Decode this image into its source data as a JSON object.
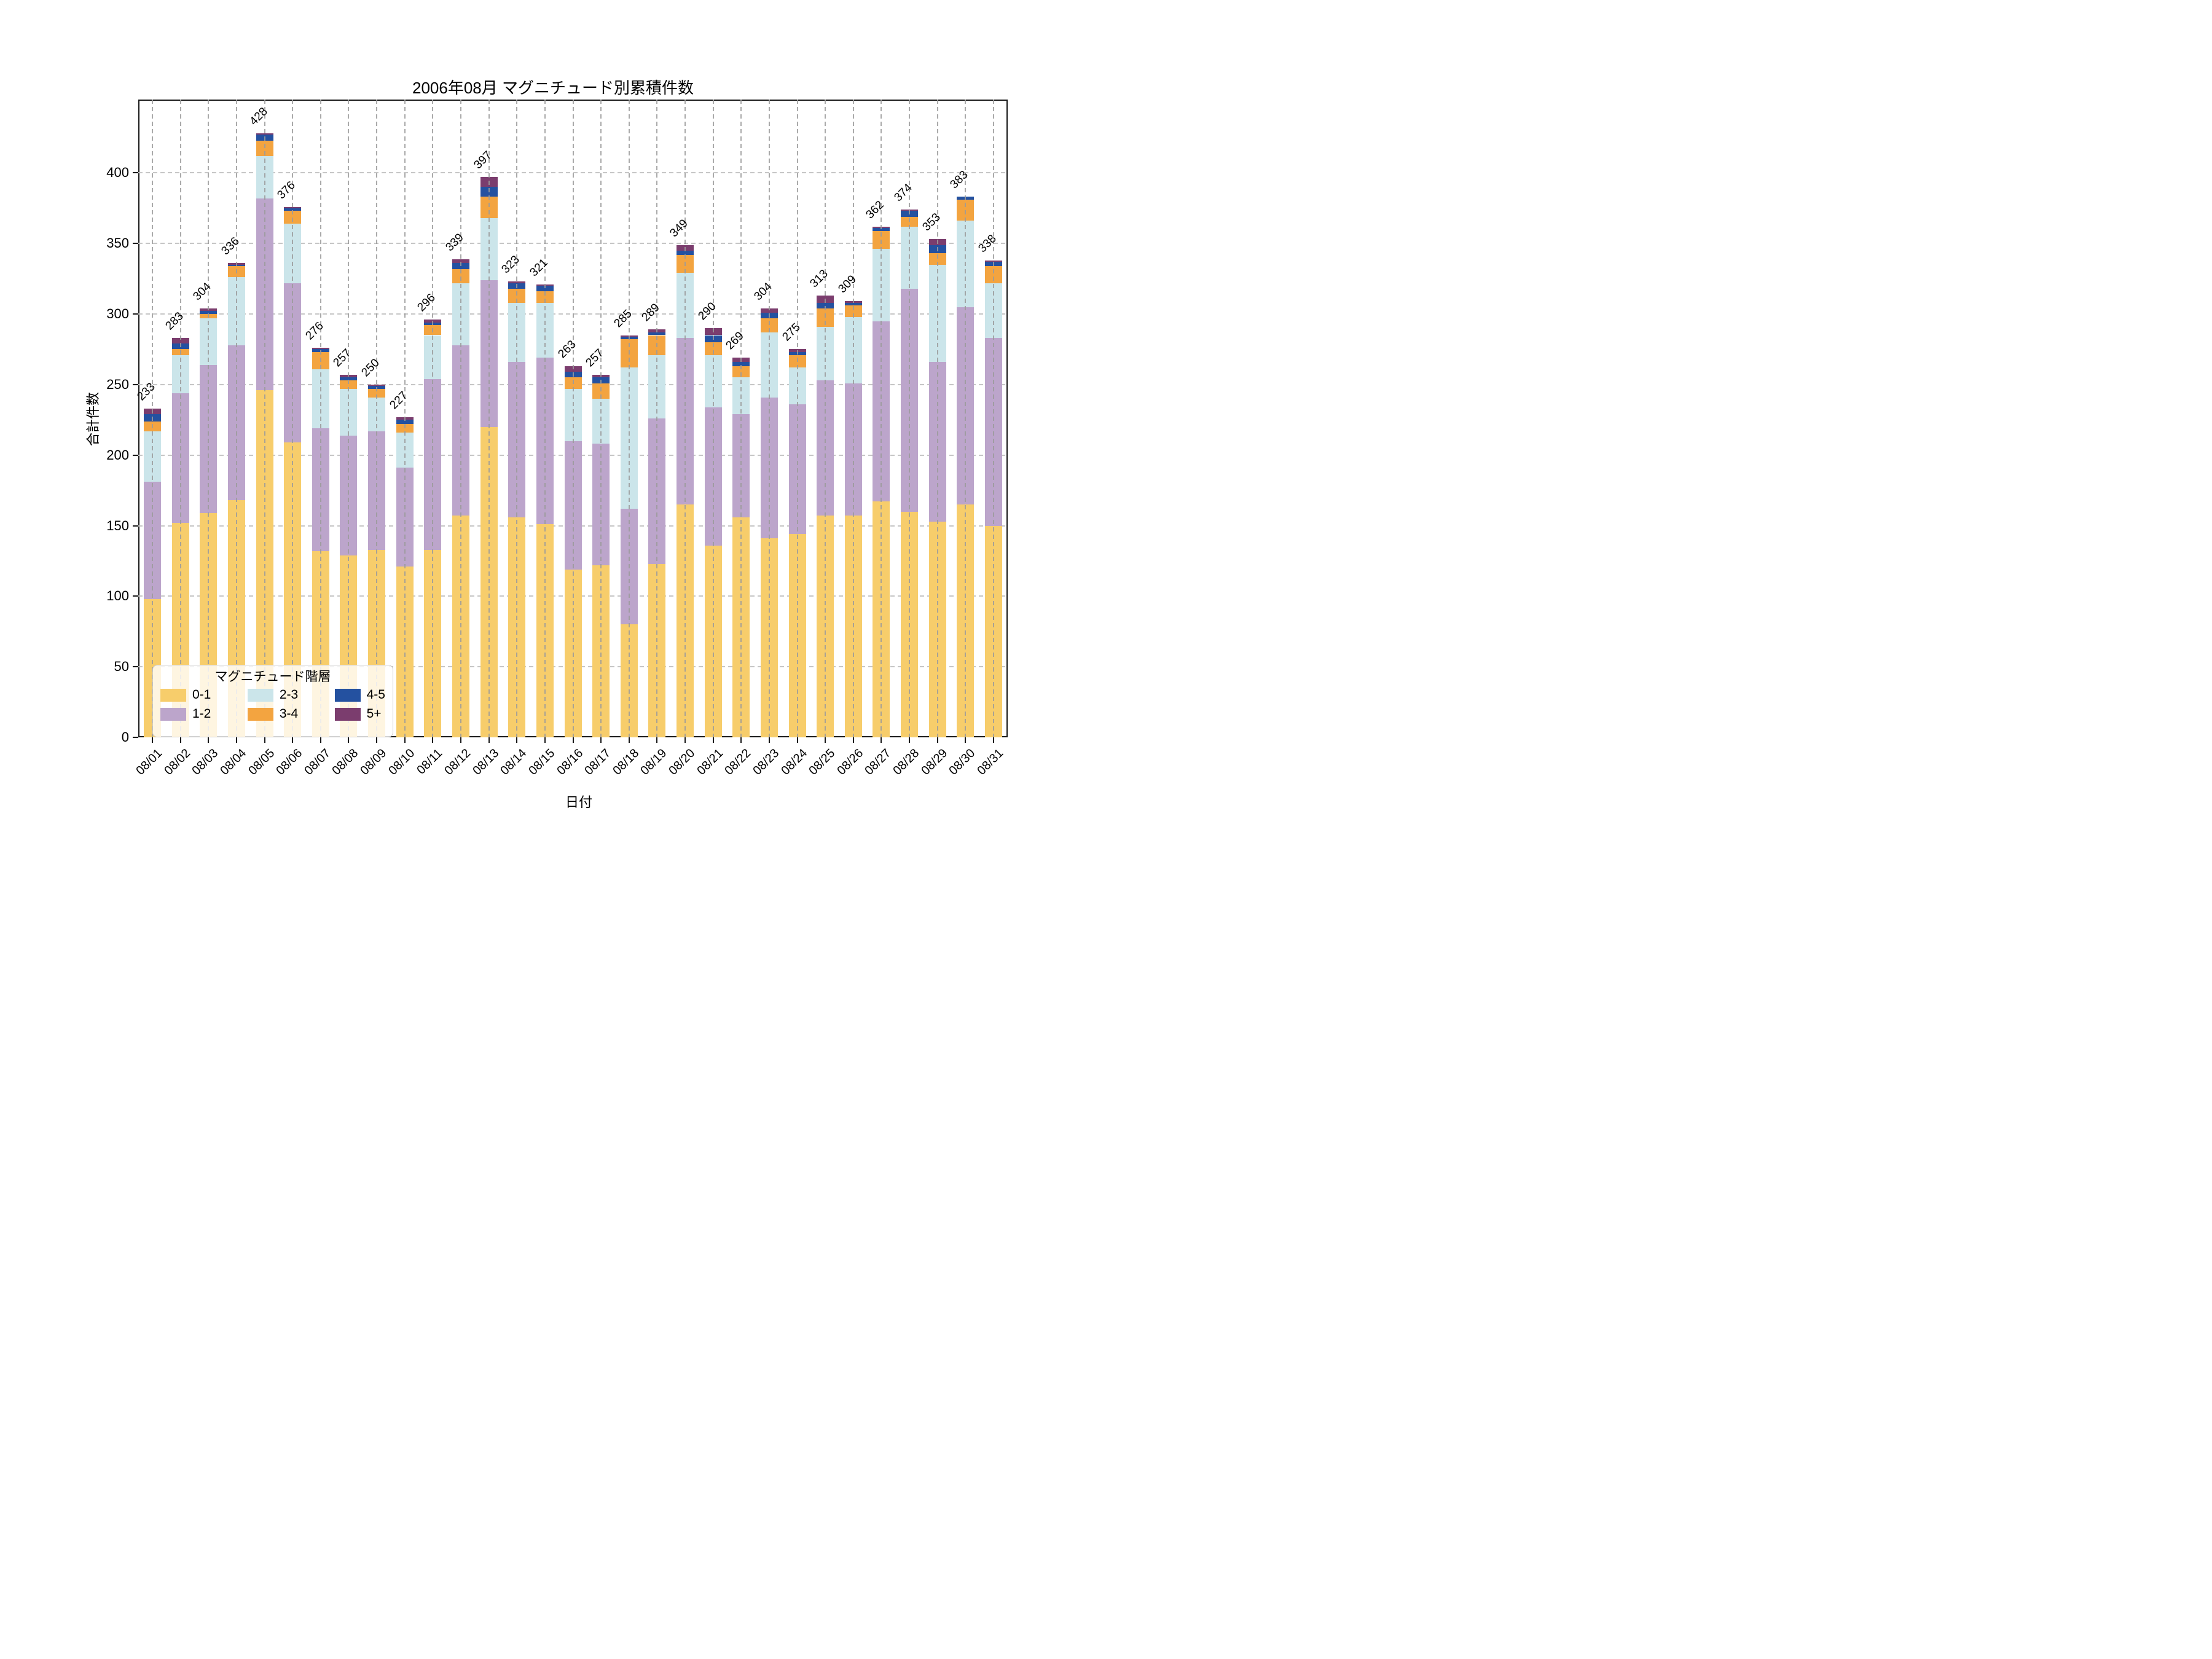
{
  "title": "2006年08月 マグニチュード別累積件数",
  "axes": {
    "x_label": "日付",
    "y_label": "合計件数",
    "y_ticks": [
      0,
      50,
      100,
      150,
      200,
      250,
      300,
      350,
      400
    ]
  },
  "legend": {
    "title": "マグニチュード階層",
    "entries": [
      "0-1",
      "1-2",
      "2-3",
      "3-4",
      "4-5",
      "5+"
    ]
  },
  "colors": {
    "mag_0_1": "#F7CD6B",
    "mag_1_2": "#BCA5CB",
    "mag_2_3": "#CBE5EA",
    "mag_3_4": "#F3A440",
    "mag_4_5": "#2451A0",
    "mag_5_plus": "#7B3D6E",
    "grid": "#c6c6c6",
    "spine": "#1a1a1a"
  },
  "chart_data": {
    "type": "bar",
    "stacked": true,
    "title": "2006年08月 マグニチュード別累積件数",
    "xlabel": "日付",
    "ylabel": "合計件数",
    "ylim": [
      0,
      452
    ],
    "y_ticks": [
      0,
      50,
      100,
      150,
      200,
      250,
      300,
      350,
      400
    ],
    "grid": "dashed; horizontal lines behind bars, vertical line at each bar drawn over bars",
    "legend_title": "マグニチュード階層",
    "legend_position": "lower left",
    "bar_value_labels_rotation_deg": 45,
    "categories": [
      "08/01",
      "08/02",
      "08/03",
      "08/04",
      "08/05",
      "08/06",
      "08/07",
      "08/08",
      "08/09",
      "08/10",
      "08/11",
      "08/12",
      "08/13",
      "08/14",
      "08/15",
      "08/16",
      "08/17",
      "08/18",
      "08/19",
      "08/20",
      "08/21",
      "08/22",
      "08/23",
      "08/24",
      "08/25",
      "08/26",
      "08/27",
      "08/28",
      "08/29",
      "08/30",
      "08/31"
    ],
    "series": [
      {
        "name": "0-1",
        "color": "#F7CD6B",
        "values": [
          98,
          152,
          159,
          168,
          246,
          209,
          132,
          129,
          133,
          121,
          133,
          157,
          220,
          156,
          151,
          119,
          122,
          80,
          123,
          165,
          136,
          156,
          141,
          144,
          157,
          157,
          167,
          160,
          153,
          165,
          150
        ]
      },
      {
        "name": "1-2",
        "color": "#BCA5CB",
        "values": [
          83,
          92,
          105,
          110,
          136,
          113,
          87,
          85,
          84,
          70,
          121,
          121,
          104,
          110,
          118,
          91,
          86,
          82,
          103,
          118,
          98,
          73,
          100,
          92,
          96,
          94,
          128,
          158,
          113,
          140,
          133
        ]
      },
      {
        "name": "2-3",
        "color": "#CBE5EA",
        "values": [
          36,
          27,
          33,
          48,
          30,
          42,
          42,
          33,
          24,
          25,
          31,
          44,
          44,
          42,
          39,
          37,
          32,
          100,
          45,
          46,
          37,
          26,
          46,
          26,
          38,
          47,
          51,
          44,
          69,
          61,
          39
        ]
      },
      {
        "name": "3-4",
        "color": "#F3A440",
        "values": [
          7,
          4,
          3,
          8,
          11,
          9,
          12,
          6,
          6,
          6,
          7,
          10,
          15,
          10,
          8,
          8,
          11,
          20,
          14,
          13,
          9,
          8,
          10,
          9,
          13,
          8,
          13,
          7,
          8,
          15,
          12
        ]
      },
      {
        "name": "4-5",
        "color": "#2451A0",
        "values": [
          5,
          4,
          2,
          1,
          4,
          2,
          2,
          2,
          2,
          3,
          2,
          4,
          7,
          4,
          4,
          4,
          4,
          2,
          2,
          3,
          5,
          3,
          4,
          2,
          4,
          2,
          2,
          4,
          6,
          2,
          3
        ]
      },
      {
        "name": "5+",
        "color": "#7B3D6E",
        "values": [
          4,
          4,
          2,
          1,
          1,
          1,
          1,
          2,
          1,
          2,
          2,
          3,
          7,
          1,
          1,
          4,
          2,
          1,
          2,
          4,
          5,
          3,
          3,
          2,
          5,
          1,
          1,
          1,
          4,
          0,
          1
        ]
      }
    ],
    "totals": [
      233,
      283,
      304,
      336,
      428,
      376,
      276,
      257,
      250,
      227,
      296,
      339,
      397,
      323,
      321,
      263,
      257,
      285,
      289,
      349,
      290,
      269,
      304,
      275,
      313,
      309,
      362,
      374,
      353,
      383,
      338
    ]
  }
}
